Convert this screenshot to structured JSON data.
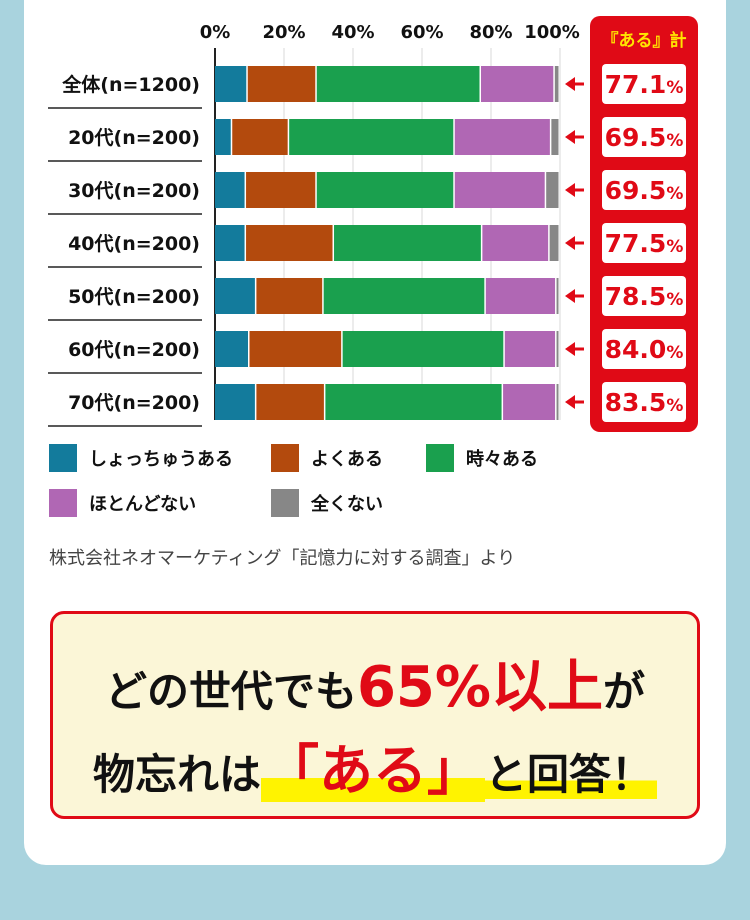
{
  "chart_data": {
    "type": "bar",
    "orientation": "horizontal",
    "stacked": "percent",
    "categories": [
      "全体(n=1200)",
      "20代(n=200)",
      "30代(n=200)",
      "40代(n=200)",
      "50代(n=200)",
      "60代(n=200)",
      "70代(n=200)"
    ],
    "x_ticks": [
      "0%",
      "20%",
      "40%",
      "60%",
      "80%",
      "100%"
    ],
    "xlim": [
      0,
      100
    ],
    "series": [
      {
        "name": "しょっちゅうある",
        "color": "#137b9c",
        "values": [
          9.5,
          5.0,
          9.0,
          9.0,
          12.0,
          10.0,
          12.0
        ]
      },
      {
        "name": "よくある",
        "color": "#b34a0d",
        "values": [
          20.0,
          16.5,
          20.5,
          25.5,
          19.5,
          27.0,
          20.0
        ]
      },
      {
        "name": "時々ある",
        "color": "#1aa04e",
        "values": [
          47.6,
          48.0,
          40.0,
          43.0,
          47.0,
          47.0,
          51.5
        ]
      },
      {
        "name": "ほとんどない",
        "color": "#b067b4",
        "values": [
          21.4,
          28.0,
          26.5,
          19.5,
          20.5,
          15.0,
          15.5
        ]
      },
      {
        "name": "全くない",
        "color": "#878787",
        "values": [
          1.5,
          2.5,
          4.0,
          3.0,
          1.0,
          1.0,
          1.0
        ]
      }
    ],
    "total_header": "『ある』計",
    "totals": [
      "77.1",
      "69.5",
      "69.5",
      "77.5",
      "78.5",
      "84.0",
      "83.5"
    ],
    "total_unit": "%"
  },
  "colors": {
    "accent_red": "#e00a16",
    "highlight_yellow": "#fff300",
    "callout_bg": "#fbf6d7"
  },
  "source": "株式会社ネオマーケティング「記憶力に対する調査」より",
  "headline": {
    "line1_pre": "どの世代でも",
    "line1_highlight": "65%以上",
    "line1_post": "が",
    "line2_pre": "物忘れは",
    "line2_highlight": "「ある」",
    "line2_post": "と回答！"
  }
}
